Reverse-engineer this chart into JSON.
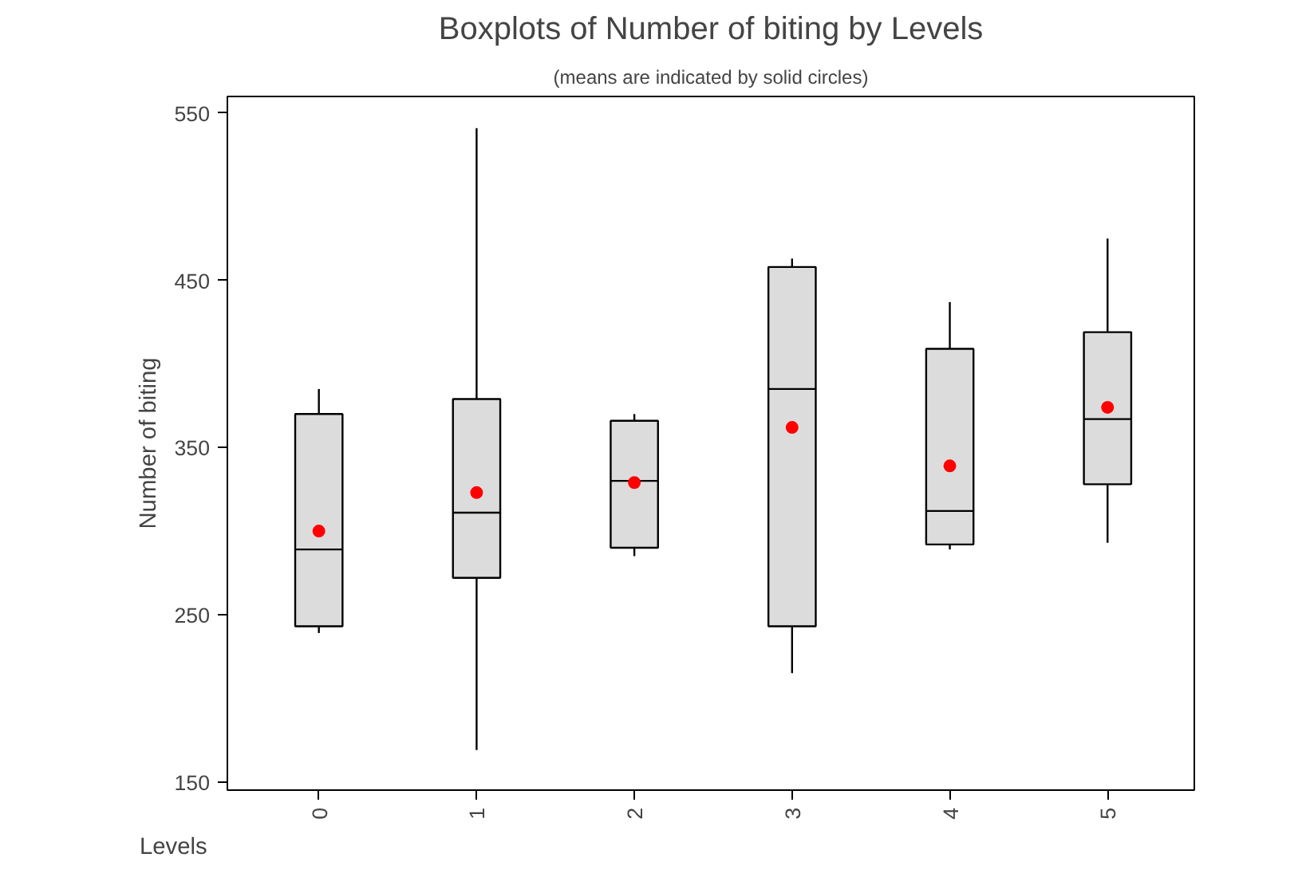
{
  "chart_data": {
    "type": "box",
    "title": "Boxplots of Number of biting by Levels",
    "subtitle": "(means are indicated by solid circles)",
    "xlabel": "Levels",
    "ylabel": "Number of biting",
    "categories": [
      "0",
      "1",
      "2",
      "3",
      "4",
      "5"
    ],
    "ylim": [
      145,
      560
    ],
    "yticks": [
      150,
      250,
      350,
      450,
      550
    ],
    "grid": false,
    "series": [
      {
        "color": "#dcdcdc",
        "boxes": [
          {
            "low": 239,
            "q1": 243,
            "median": 289,
            "q3": 370,
            "high": 385,
            "mean": 300
          },
          {
            "low": 169,
            "q1": 272,
            "median": 311,
            "q3": 379,
            "high": 541,
            "mean": 323
          },
          {
            "low": 285,
            "q1": 290,
            "median": 330,
            "q3": 366,
            "high": 370,
            "mean": 329
          },
          {
            "low": 215,
            "q1": 243,
            "median": 385,
            "q3": 458,
            "high": 463,
            "mean": 362
          },
          {
            "low": 289,
            "q1": 292,
            "median": 312,
            "q3": 409,
            "high": 437,
            "mean": 339
          },
          {
            "low": 293,
            "q1": 328,
            "median": 367,
            "q3": 419,
            "high": 475,
            "mean": 374
          }
        ]
      }
    ]
  }
}
